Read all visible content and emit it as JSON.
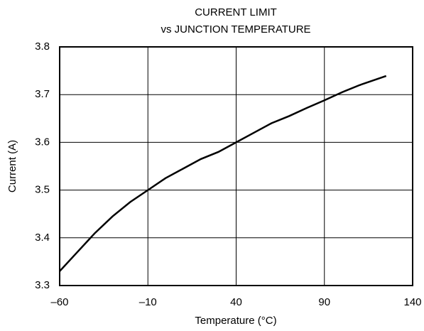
{
  "chart_data": {
    "type": "line",
    "title": "CURRENT LIMIT",
    "subtitle": "vs JUNCTION TEMPERATURE",
    "x_label": "Temperature (°C)",
    "y_label": "Current (A)",
    "x": [
      -60,
      -50,
      -40,
      -30,
      -20,
      -10,
      0,
      10,
      20,
      30,
      40,
      50,
      60,
      70,
      80,
      90,
      100,
      110,
      125
    ],
    "series": [
      {
        "name": "Current",
        "color": "#000000",
        "values": [
          3.33,
          3.37,
          3.41,
          3.445,
          3.475,
          3.5,
          3.525,
          3.545,
          3.565,
          3.58,
          3.6,
          3.62,
          3.64,
          3.655,
          3.672,
          3.688,
          3.705,
          3.72,
          3.739
        ]
      }
    ],
    "xlim": [
      -60,
      140
    ],
    "xticks": [
      {
        "value": -60,
        "label": "–60"
      },
      {
        "value": -10,
        "label": "–10"
      },
      40,
      90,
      140
    ],
    "ylim": [
      3.3,
      3.8
    ],
    "yticks": [
      3.3,
      3.4,
      3.5,
      3.6,
      3.7,
      3.8
    ],
    "grid": true
  }
}
